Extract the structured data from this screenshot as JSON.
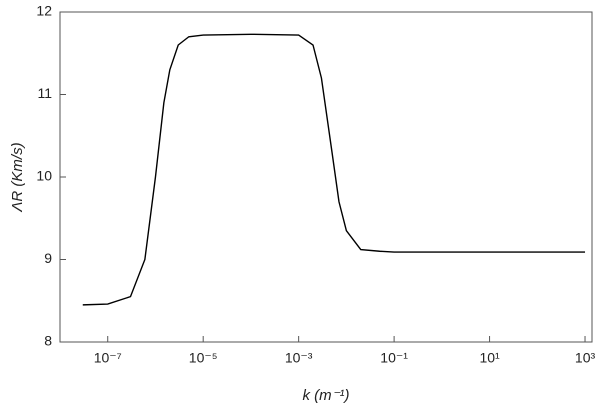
{
  "chart_data": {
    "type": "line",
    "log_x": true,
    "x_label": "k  (m⁻¹)",
    "y_label": "ΛR (Km/s)",
    "x": [
      3e-08,
      1e-07,
      3e-07,
      6e-07,
      1e-06,
      1.5e-06,
      2e-06,
      3e-06,
      5e-06,
      1e-05,
      0.0001,
      0.001,
      0.002,
      0.003,
      0.005,
      0.007,
      0.01,
      0.02,
      0.05,
      0.1,
      1,
      10,
      100,
      1000
    ],
    "series": [
      {
        "color": "#000000",
        "values": [
          8.45,
          8.46,
          8.55,
          9.0,
          10.0,
          10.9,
          11.3,
          11.6,
          11.7,
          11.72,
          11.73,
          11.72,
          11.6,
          11.2,
          10.3,
          9.7,
          9.35,
          9.12,
          9.1,
          9.09,
          9.09,
          9.09,
          9.09,
          9.09
        ]
      }
    ],
    "xlim": [
      1e-08,
      1400
    ],
    "xticks": [
      {
        "value": 1e-07,
        "label": "10⁻⁷"
      },
      {
        "value": 1e-05,
        "label": "10⁻⁵"
      },
      {
        "value": 0.001,
        "label": "10⁻³"
      },
      {
        "value": 0.1,
        "label": "10⁻¹"
      },
      {
        "value": 10,
        "label": "10¹"
      },
      {
        "value": 1000,
        "label": "10³"
      }
    ],
    "ylim": [
      8,
      12
    ],
    "yticks": [
      8,
      9,
      10,
      11,
      12
    ],
    "grid": false
  }
}
